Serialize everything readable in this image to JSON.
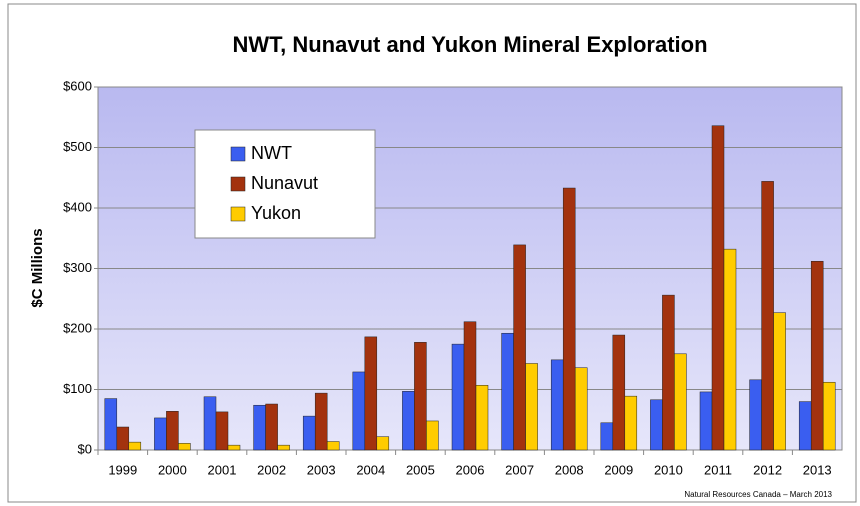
{
  "chart_data": {
    "type": "bar",
    "title": "NWT, Nunavut and Yukon Mineral Exploration",
    "y_label": "$C Millions",
    "note": "Natural Resources Canada – March 2013",
    "categories": [
      "1999",
      "2000",
      "2001",
      "2002",
      "2003",
      "2004",
      "2005",
      "2006",
      "2007",
      "2008",
      "2009",
      "2010",
      "2011",
      "2012",
      "2013"
    ],
    "series": [
      {
        "name": "NWT",
        "color": "#3a5ef0",
        "values": [
          85,
          53,
          88,
          74,
          56,
          129,
          97,
          175,
          193,
          149,
          45,
          83,
          96,
          116,
          80
        ]
      },
      {
        "name": "Nunavut",
        "color": "#a3320e",
        "values": [
          38,
          64,
          63,
          76,
          94,
          187,
          178,
          212,
          339,
          433,
          190,
          256,
          536,
          444,
          312
        ]
      },
      {
        "name": "Yukon",
        "color": "#ffcc00",
        "values": [
          13,
          11,
          8,
          8,
          14,
          22,
          48,
          107,
          143,
          136,
          89,
          159,
          332,
          227,
          112
        ]
      }
    ],
    "ylim": [
      0,
      600
    ],
    "yticks": [
      {
        "value": 0,
        "label": "$0"
      },
      {
        "value": 100,
        "label": "$100"
      },
      {
        "value": 200,
        "label": "$200"
      },
      {
        "value": 300,
        "label": "$300"
      },
      {
        "value": 400,
        "label": "$400"
      },
      {
        "value": 500,
        "label": "$500"
      },
      {
        "value": 600,
        "label": "$600"
      }
    ],
    "grid": true,
    "legend": "upper-left"
  }
}
